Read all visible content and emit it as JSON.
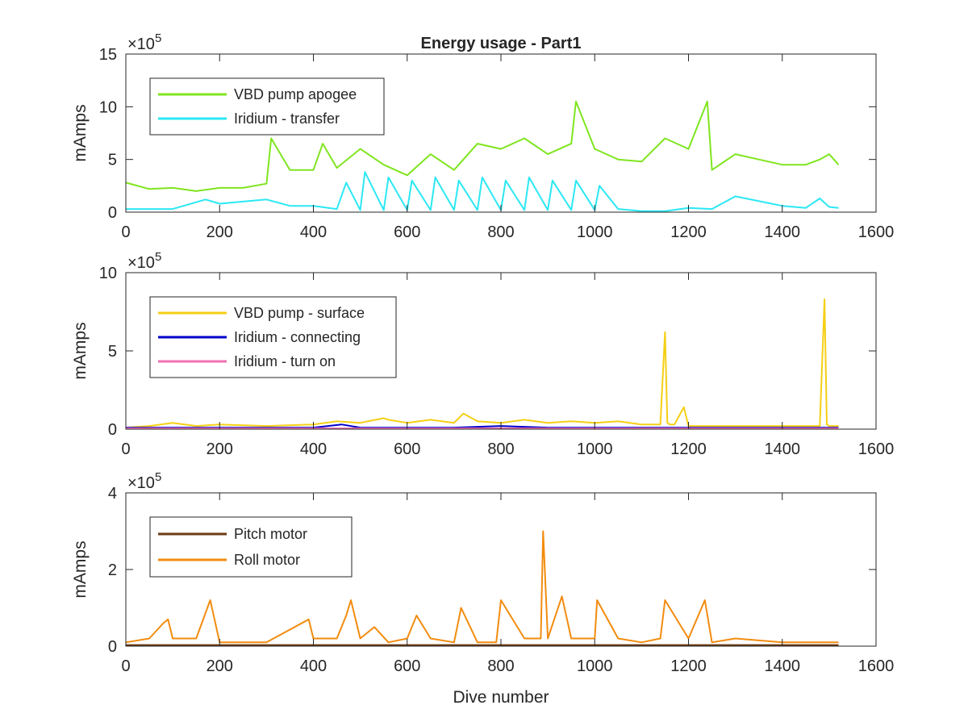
{
  "chart_data": [
    {
      "type": "line",
      "title": "Energy usage - Part1",
      "xlabel": "",
      "ylabel": "mAmps",
      "xlim": [
        0,
        1600
      ],
      "ylim": [
        0,
        1500000
      ],
      "x_ticks": [
        0,
        200,
        400,
        600,
        800,
        1000,
        1200,
        1400,
        1600
      ],
      "y_ticks": [
        0,
        5,
        10,
        15
      ],
      "y_exponent": "×10",
      "y_exponent_power": "5",
      "legend_position": "top-left",
      "grid": false,
      "series": [
        {
          "name": "VBD pump apogee",
          "color": "#7fe51f",
          "x": [
            0,
            50,
            100,
            150,
            200,
            250,
            300,
            310,
            350,
            400,
            420,
            450,
            500,
            550,
            600,
            650,
            700,
            750,
            800,
            850,
            900,
            950,
            960,
            1000,
            1050,
            1100,
            1150,
            1200,
            1240,
            1250,
            1300,
            1350,
            1400,
            1450,
            1480,
            1500,
            1520
          ],
          "values": [
            280000,
            220000,
            230000,
            200000,
            230000,
            230000,
            270000,
            700000,
            400000,
            400000,
            650000,
            420000,
            600000,
            450000,
            350000,
            550000,
            400000,
            650000,
            600000,
            700000,
            550000,
            650000,
            1050000,
            600000,
            500000,
            480000,
            700000,
            600000,
            1050000,
            400000,
            550000,
            500000,
            450000,
            450000,
            500000,
            550000,
            450000
          ]
        },
        {
          "name": "Iridium - transfer",
          "color": "#2be8f4",
          "x": [
            0,
            100,
            170,
            200,
            250,
            300,
            350,
            400,
            450,
            470,
            500,
            510,
            550,
            560,
            600,
            610,
            650,
            660,
            700,
            710,
            750,
            760,
            800,
            810,
            850,
            860,
            900,
            910,
            950,
            960,
            1000,
            1010,
            1050,
            1100,
            1150,
            1200,
            1250,
            1300,
            1400,
            1450,
            1480,
            1500,
            1520
          ],
          "values": [
            30000,
            30000,
            120000,
            80000,
            100000,
            120000,
            60000,
            60000,
            30000,
            280000,
            20000,
            380000,
            20000,
            330000,
            20000,
            300000,
            20000,
            330000,
            20000,
            300000,
            20000,
            330000,
            20000,
            300000,
            20000,
            330000,
            20000,
            300000,
            20000,
            300000,
            20000,
            250000,
            30000,
            10000,
            10000,
            40000,
            30000,
            150000,
            60000,
            40000,
            130000,
            50000,
            40000
          ]
        }
      ]
    },
    {
      "type": "line",
      "title": "",
      "xlabel": "",
      "ylabel": "mAmps",
      "xlim": [
        0,
        1600
      ],
      "ylim": [
        0,
        1000000
      ],
      "x_ticks": [
        0,
        200,
        400,
        600,
        800,
        1000,
        1200,
        1400,
        1600
      ],
      "y_ticks": [
        0,
        5,
        10
      ],
      "y_exponent": "×10",
      "y_exponent_power": "5",
      "legend_position": "top-left",
      "grid": false,
      "series": [
        {
          "name": "VBD pump - surface",
          "color": "#f5cf14",
          "x": [
            0,
            50,
            100,
            150,
            200,
            300,
            400,
            450,
            500,
            550,
            560,
            600,
            650,
            700,
            720,
            750,
            800,
            850,
            900,
            950,
            1000,
            1050,
            1100,
            1140,
            1150,
            1155,
            1160,
            1170,
            1190,
            1200,
            1250,
            1300,
            1400,
            1480,
            1490,
            1495,
            1500,
            1520
          ],
          "values": [
            10000,
            20000,
            40000,
            20000,
            30000,
            20000,
            30000,
            50000,
            40000,
            70000,
            60000,
            40000,
            60000,
            40000,
            100000,
            50000,
            40000,
            60000,
            40000,
            50000,
            40000,
            50000,
            30000,
            30000,
            620000,
            40000,
            30000,
            30000,
            140000,
            20000,
            20000,
            20000,
            20000,
            20000,
            830000,
            30000,
            20000,
            20000
          ]
        },
        {
          "name": "Iridium - connecting",
          "color": "#0000cc",
          "x": [
            0,
            100,
            200,
            300,
            400,
            460,
            500,
            600,
            700,
            800,
            900,
            1000,
            1100,
            1200,
            1300,
            1400,
            1500,
            1520
          ],
          "values": [
            10000,
            10000,
            10000,
            10000,
            10000,
            30000,
            10000,
            10000,
            10000,
            20000,
            10000,
            10000,
            10000,
            10000,
            10000,
            10000,
            10000,
            10000
          ]
        },
        {
          "name": "Iridium - turn on",
          "color": "#f06fb4",
          "x": [
            0,
            200,
            400,
            600,
            800,
            1000,
            1200,
            1400,
            1520
          ],
          "values": [
            5000,
            5000,
            5000,
            5000,
            5000,
            5000,
            5000,
            5000,
            5000
          ]
        }
      ]
    },
    {
      "type": "line",
      "title": "",
      "xlabel": "Dive number",
      "ylabel": "mAmps",
      "xlim": [
        0,
        1600
      ],
      "ylim": [
        0,
        400000
      ],
      "x_ticks": [
        0,
        200,
        400,
        600,
        800,
        1000,
        1200,
        1400,
        1600
      ],
      "y_ticks": [
        0,
        2,
        4
      ],
      "y_exponent": "×10",
      "y_exponent_power": "5",
      "legend_position": "top-left",
      "grid": false,
      "series": [
        {
          "name": "Pitch motor",
          "color": "#6b3a12",
          "x": [
            0,
            200,
            400,
            600,
            800,
            1000,
            1200,
            1400,
            1520
          ],
          "values": [
            3000,
            3000,
            3000,
            3000,
            3000,
            3000,
            3000,
            3000,
            3000
          ]
        },
        {
          "name": "Roll motor",
          "color": "#f28c0f",
          "x": [
            0,
            50,
            80,
            90,
            100,
            150,
            180,
            200,
            300,
            390,
            400,
            450,
            470,
            480,
            500,
            530,
            560,
            600,
            620,
            650,
            700,
            715,
            750,
            790,
            800,
            850,
            885,
            890,
            900,
            930,
            950,
            1000,
            1005,
            1050,
            1100,
            1140,
            1150,
            1200,
            1235,
            1250,
            1300,
            1400,
            1500,
            1520
          ],
          "values": [
            10000,
            20000,
            60000,
            70000,
            20000,
            20000,
            120000,
            10000,
            10000,
            70000,
            20000,
            20000,
            80000,
            120000,
            20000,
            50000,
            10000,
            20000,
            80000,
            20000,
            10000,
            100000,
            10000,
            10000,
            120000,
            20000,
            20000,
            300000,
            20000,
            130000,
            20000,
            20000,
            120000,
            20000,
            10000,
            20000,
            120000,
            20000,
            120000,
            10000,
            20000,
            10000,
            10000,
            10000
          ]
        }
      ]
    }
  ]
}
